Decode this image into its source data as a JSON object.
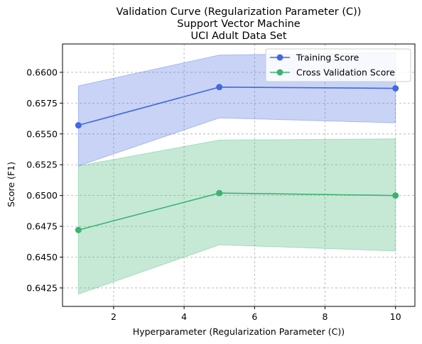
{
  "chart_data": {
    "type": "line",
    "title_lines": [
      "Validation Curve (Regularization Parameter (C))",
      "Support Vector Machine",
      "UCI Adult Data Set"
    ],
    "xlabel": "Hyperparameter (Regularization Parameter (C))",
    "ylabel": "Score (F1)",
    "xlim": [
      0.55,
      10.55
    ],
    "ylim": [
      0.641,
      0.6623
    ],
    "xticks": [
      2,
      4,
      6,
      8,
      10
    ],
    "xtick_labels": [
      "2",
      "4",
      "6",
      "8",
      "10"
    ],
    "yticks": [
      0.6425,
      0.645,
      0.6475,
      0.65,
      0.6525,
      0.655,
      0.6575,
      0.66
    ],
    "ytick_labels": [
      "0.6425",
      "0.6450",
      "0.6475",
      "0.6500",
      "0.6525",
      "0.6550",
      "0.6575",
      "0.6600"
    ],
    "grid": true,
    "legend_position": "upper right",
    "x": [
      1,
      5,
      10
    ],
    "series": [
      {
        "name": "Training Score",
        "values": [
          0.6557,
          0.6588,
          0.6587
        ],
        "band_lower": [
          0.6524,
          0.6563,
          0.6559
        ],
        "band_upper": [
          0.6589,
          0.6614,
          0.6616
        ],
        "color": "#4169e1"
      },
      {
        "name": "Cross Validation Score",
        "values": [
          0.6472,
          0.6502,
          0.65
        ],
        "band_lower": [
          0.642,
          0.646,
          0.6455
        ],
        "band_upper": [
          0.6524,
          0.6545,
          0.6546
        ],
        "color": "#3cb371"
      }
    ]
  }
}
